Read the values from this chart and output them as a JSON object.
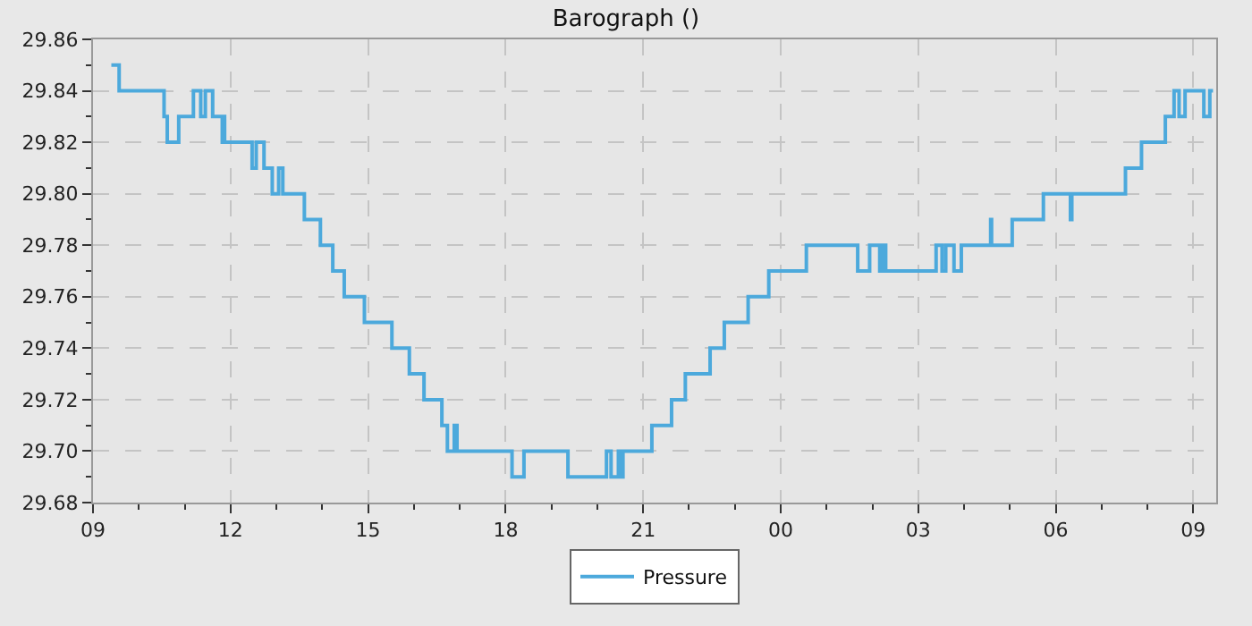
{
  "chart_data": {
    "type": "step",
    "title": "Barograph ()",
    "x": [
      9.4,
      9.57,
      10.55,
      10.62,
      10.87,
      11.19,
      11.35,
      11.45,
      11.61,
      11.82,
      11.85,
      11.87,
      12.47,
      12.56,
      12.73,
      12.91,
      13.05,
      13.14,
      13.61,
      13.96,
      14.23,
      14.48,
      14.92,
      15.52,
      15.9,
      16.22,
      16.61,
      16.73,
      16.88,
      16.94,
      18.14,
      18.4,
      19.36,
      20.2,
      20.3,
      20.46,
      20.51,
      20.56,
      21.19,
      21.62,
      21.92,
      22.46,
      22.77,
      23.29,
      23.74,
      24.56,
      25.68,
      25.94,
      26.16,
      26.22,
      26.29,
      27.39,
      27.52,
      27.6,
      27.78,
      27.94,
      28.58,
      28.6,
      29.05,
      29.73,
      30.32,
      30.35,
      31.52,
      31.87,
      32.39,
      32.58,
      32.69,
      32.82,
      33.23,
      33.36,
      33.43
    ],
    "series": [
      {
        "name": "Pressure",
        "color": "#4ca9dc",
        "values": [
          29.85,
          29.84,
          29.83,
          29.82,
          29.83,
          29.84,
          29.83,
          29.84,
          29.83,
          29.82,
          29.83,
          29.82,
          29.81,
          29.82,
          29.81,
          29.8,
          29.81,
          29.8,
          29.79,
          29.78,
          29.77,
          29.76,
          29.75,
          29.74,
          29.73,
          29.72,
          29.71,
          29.7,
          29.71,
          29.7,
          29.69,
          29.7,
          29.69,
          29.7,
          29.69,
          29.7,
          29.69,
          29.7,
          29.71,
          29.72,
          29.73,
          29.74,
          29.75,
          29.76,
          29.77,
          29.78,
          29.77,
          29.78,
          29.77,
          29.78,
          29.77,
          29.78,
          29.77,
          29.78,
          29.77,
          29.78,
          29.79,
          29.78,
          29.79,
          29.8,
          29.79,
          29.8,
          29.81,
          29.82,
          29.83,
          29.84,
          29.83,
          29.84,
          29.83,
          29.84,
          29.84
        ]
      }
    ],
    "xlim": [
      9,
      33.5
    ],
    "xticks": [
      {
        "value": 9,
        "label": "09"
      },
      {
        "value": 10,
        "label": null
      },
      {
        "value": 11,
        "label": null
      },
      {
        "value": 12,
        "label": "12"
      },
      {
        "value": 13,
        "label": null
      },
      {
        "value": 14,
        "label": null
      },
      {
        "value": 15,
        "label": "15"
      },
      {
        "value": 16,
        "label": null
      },
      {
        "value": 17,
        "label": null
      },
      {
        "value": 18,
        "label": "18"
      },
      {
        "value": 19,
        "label": null
      },
      {
        "value": 20,
        "label": null
      },
      {
        "value": 21,
        "label": "21"
      },
      {
        "value": 22,
        "label": null
      },
      {
        "value": 23,
        "label": null
      },
      {
        "value": 24,
        "label": "00"
      },
      {
        "value": 25,
        "label": null
      },
      {
        "value": 26,
        "label": null
      },
      {
        "value": 27,
        "label": "03"
      },
      {
        "value": 28,
        "label": null
      },
      {
        "value": 29,
        "label": null
      },
      {
        "value": 30,
        "label": "06"
      },
      {
        "value": 31,
        "label": null
      },
      {
        "value": 32,
        "label": null
      },
      {
        "value": 33,
        "label": "09"
      }
    ],
    "ylim": [
      29.68,
      29.86
    ],
    "yticks": [
      {
        "value": 29.68,
        "label": "29.68"
      },
      {
        "value": 29.69,
        "label": null
      },
      {
        "value": 29.7,
        "label": "29.70"
      },
      {
        "value": 29.71,
        "label": null
      },
      {
        "value": 29.72,
        "label": "29.72"
      },
      {
        "value": 29.73,
        "label": null
      },
      {
        "value": 29.74,
        "label": "29.74"
      },
      {
        "value": 29.75,
        "label": null
      },
      {
        "value": 29.76,
        "label": "29.76"
      },
      {
        "value": 29.77,
        "label": null
      },
      {
        "value": 29.78,
        "label": "29.78"
      },
      {
        "value": 29.79,
        "label": null
      },
      {
        "value": 29.8,
        "label": "29.80"
      },
      {
        "value": 29.81,
        "label": null
      },
      {
        "value": 29.82,
        "label": "29.82"
      },
      {
        "value": 29.83,
        "label": null
      },
      {
        "value": 29.84,
        "label": "29.84"
      },
      {
        "value": 29.85,
        "label": null
      },
      {
        "value": 29.86,
        "label": "29.86"
      }
    ],
    "grid": true,
    "legend": "bottom",
    "marker": "none",
    "line_style": "solid"
  }
}
